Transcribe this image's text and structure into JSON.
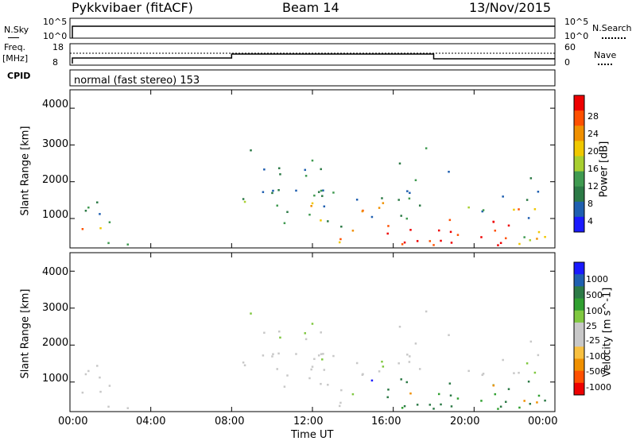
{
  "header": {
    "station": "Pykkvibaer (fitACF)",
    "beam": "Beam 14",
    "date": "13/Nov/2015"
  },
  "panels": {
    "nsky": {
      "label": "N.Sky",
      "right_label": "N.Search",
      "ticks_left": [
        "10^5",
        "10^0"
      ],
      "ticks_right": [
        "10^5",
        "10^0"
      ]
    },
    "freq": {
      "label_line1": "Freq.",
      "label_line2": "[MHz]",
      "right_label": "Nave",
      "ticks_left": [
        "18",
        "8"
      ],
      "ticks_right": [
        "60",
        "0"
      ]
    },
    "cpid": {
      "label": "CPID",
      "text": "normal (fast stereo) 153"
    }
  },
  "colors": {
    "power": [
      "#1a1aff",
      "#1f5fb0",
      "#2c7a46",
      "#3f9a50",
      "#a8cf30",
      "#f0c800",
      "#f09000",
      "#ff5000",
      "#ee0000"
    ],
    "velocity": [
      "#ee0000",
      "#ff5000",
      "#f09000",
      "#f8c040",
      "#c8c8c8",
      "#c8c8c8",
      "#80c840",
      "#30a030",
      "#2c7a46",
      "#1f5fb0",
      "#1a1aff"
    ]
  },
  "chart_data": [
    {
      "type": "heatmap",
      "title": "",
      "ylabel": "Slant Range [km]",
      "xlabel": "",
      "y_ticks": [
        "4000",
        "3000",
        "2000",
        "1000"
      ],
      "x_ticks": [
        "00:00",
        "04:00",
        "08:00",
        "12:00",
        "16:00",
        "20:00",
        "00:00"
      ],
      "ylim": [
        200,
        4500
      ],
      "xlim": [
        0,
        24
      ],
      "colorbar": {
        "label": "Power [dB]",
        "ticks": [
          "28",
          "24",
          "20",
          "16",
          "12",
          "8",
          "4"
        ]
      }
    },
    {
      "type": "heatmap",
      "title": "",
      "ylabel": "Slant Range [km]",
      "xlabel": "Time UT",
      "y_ticks": [
        "4000",
        "3000",
        "2000",
        "1000"
      ],
      "x_ticks": [
        "00:00",
        "04:00",
        "08:00",
        "12:00",
        "16:00",
        "20:00",
        "00:00"
      ],
      "ylim": [
        200,
        4500
      ],
      "xlim": [
        0,
        24
      ],
      "colorbar": {
        "label": "Velocity [m s^-1]",
        "ticks": [
          "1000",
          "500",
          "100",
          "25",
          "-25",
          "-100",
          "-500",
          "-1000"
        ]
      }
    }
  ]
}
